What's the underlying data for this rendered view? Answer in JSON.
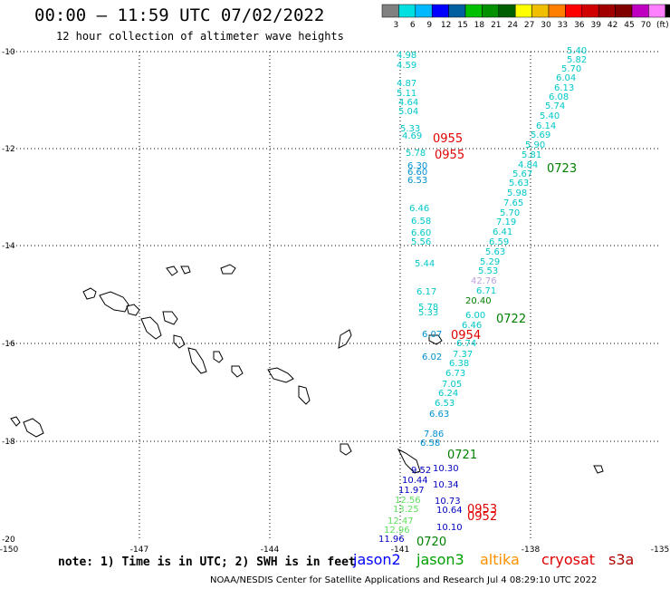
{
  "title": "00:00 — 11:59 UTC 07/02/2022",
  "subtitle": "12 hour collection of altimeter wave heights",
  "colorbar": {
    "colors": [
      "#808080",
      "#00e0e0",
      "#00b8ff",
      "#0000ff",
      "#0060a0",
      "#00c000",
      "#009000",
      "#006000",
      "#ffff00",
      "#f0c000",
      "#ff8000",
      "#ff0000",
      "#d00000",
      "#a00000",
      "#800000",
      "#c000c0",
      "#ff80ff",
      "#000000"
    ],
    "labels": [
      "3",
      "6",
      "9",
      "12",
      "15",
      "18",
      "21",
      "24",
      "27",
      "30",
      "33",
      "36",
      "39",
      "42",
      "45",
      "70",
      "(ft)"
    ]
  },
  "axes": {
    "lat_labels": [
      "-10",
      "-12",
      "-14",
      "-16",
      "-18",
      "-20"
    ],
    "lon_labels": [
      "-150",
      "-147",
      "-144",
      "-141",
      "-138",
      "-135"
    ]
  },
  "swh_labels": [
    {
      "t": "5.40",
      "c": "#00c8c8"
    },
    {
      "t": "5.82",
      "c": "#00c8c8"
    },
    {
      "t": "5.70",
      "c": "#00c8c8"
    },
    {
      "t": "6.04",
      "c": "#00c8c8"
    },
    {
      "t": "6.13",
      "c": "#00c8c8"
    },
    {
      "t": "6.08",
      "c": "#00c8c8"
    },
    {
      "t": "5.74",
      "c": "#00c8c8"
    },
    {
      "t": "5.40",
      "c": "#00c8c8"
    },
    {
      "t": "6.14",
      "c": "#00c8c8"
    },
    {
      "t": "5.69",
      "c": "#00c8c8"
    },
    {
      "t": "5.90",
      "c": "#00c8c8"
    },
    {
      "t": "5.81",
      "c": "#00c8c8"
    },
    {
      "t": "4.84",
      "c": "#00c8c8"
    },
    {
      "t": "5.67",
      "c": "#00c8c8"
    },
    {
      "t": "5.63",
      "c": "#00c8c8"
    },
    {
      "t": "5.98",
      "c": "#00c8c8"
    },
    {
      "t": "7.65",
      "c": "#00c8c8"
    },
    {
      "t": "5.70",
      "c": "#00c8c8"
    },
    {
      "t": "7.19",
      "c": "#00c8c8"
    },
    {
      "t": "6.41",
      "c": "#00c8c8"
    },
    {
      "t": "6.59",
      "c": "#00c8c8"
    },
    {
      "t": "5.63",
      "c": "#00c8c8"
    },
    {
      "t": "5.29",
      "c": "#00c8c8"
    },
    {
      "t": "5.53",
      "c": "#00c8c8"
    },
    {
      "t": "42.76",
      "c": "#c0a0e0"
    },
    {
      "t": "6.71",
      "c": "#00c8c8"
    },
    {
      "t": "20.40",
      "c": "#008000"
    },
    {
      "t": "6.00",
      "c": "#00c8c8"
    },
    {
      "t": "6.46",
      "c": "#00c8c8"
    },
    {
      "t": "6.74",
      "c": "#00c8c8"
    },
    {
      "t": "7.37",
      "c": "#00c8c8"
    },
    {
      "t": "6.38",
      "c": "#00c8c8"
    },
    {
      "t": "6.73",
      "c": "#00c8c8"
    },
    {
      "t": "7.05",
      "c": "#00c8c8"
    },
    {
      "t": "6.24",
      "c": "#00c8c8"
    },
    {
      "t": "6.53",
      "c": "#00c8c8"
    },
    {
      "t": "4.98",
      "c": "#00c8c8"
    },
    {
      "t": "4.59",
      "c": "#00c8c8"
    },
    {
      "t": "4.87",
      "c": "#00c8c8"
    },
    {
      "t": "5.11",
      "c": "#00c8c8"
    },
    {
      "t": "4.64",
      "c": "#00c8c8"
    },
    {
      "t": "5.04",
      "c": "#00c8c8"
    },
    {
      "t": "5.33",
      "c": "#00c8c8"
    },
    {
      "t": "4.69",
      "c": "#00c8c8"
    },
    {
      "t": "5.78",
      "c": "#00c8c8"
    },
    {
      "t": "6.30",
      "c": "#0090d0"
    },
    {
      "t": "6.60",
      "c": "#0090d0"
    },
    {
      "t": "6.53",
      "c": "#0090d0"
    },
    {
      "t": "6.46",
      "c": "#00c8c8"
    },
    {
      "t": "6.58",
      "c": "#00c8c8"
    },
    {
      "t": "6.60",
      "c": "#00c8c8"
    },
    {
      "t": "5.56",
      "c": "#00c8c8"
    },
    {
      "t": "5.44",
      "c": "#00c8c8"
    },
    {
      "t": "6.17",
      "c": "#00c8c8"
    },
    {
      "t": "5.78",
      "c": "#00c8c8"
    },
    {
      "t": "5.33",
      "c": "#00c8c8"
    },
    {
      "t": "6.07",
      "c": "#0090d0"
    },
    {
      "t": "6.02",
      "c": "#0090d0"
    },
    {
      "t": "6.63",
      "c": "#0090d0"
    },
    {
      "t": "7.86",
      "c": "#0090d0"
    },
    {
      "t": "6.58",
      "c": "#0090d0"
    },
    {
      "t": "9.52",
      "c": "#0000c0"
    },
    {
      "t": "10.30",
      "c": "#0000c0"
    },
    {
      "t": "10.44",
      "c": "#0000c0"
    },
    {
      "t": "11.97",
      "c": "#0000c0"
    },
    {
      "t": "10.34",
      "c": "#0000c0"
    },
    {
      "t": "12.56",
      "c": "#60e060"
    },
    {
      "t": "13.25",
      "c": "#60e060"
    },
    {
      "t": "12.47",
      "c": "#60e060"
    },
    {
      "t": "12.96",
      "c": "#60e060"
    },
    {
      "t": "11.96",
      "c": "#0000c0"
    },
    {
      "t": "10.73",
      "c": "#0000c0"
    },
    {
      "t": "10.64",
      "c": "#0000c0"
    },
    {
      "t": "10.10",
      "c": "#0000c0"
    }
  ],
  "time_labels": [
    {
      "t": "0955",
      "c": "#e00000"
    },
    {
      "t": "0955",
      "c": "#e00000"
    },
    {
      "t": "0723",
      "c": "#008000"
    },
    {
      "t": "0722",
      "c": "#008000"
    },
    {
      "t": "0954",
      "c": "#e00000"
    },
    {
      "t": "0721",
      "c": "#008000"
    },
    {
      "t": "0953",
      "c": "#e00000"
    },
    {
      "t": "0952",
      "c": "#e00000"
    },
    {
      "t": "0720",
      "c": "#008000"
    }
  ],
  "footer": {
    "note": "note: 1) Time is in UTC; 2) SWH is in feet",
    "satellites": [
      {
        "name": "jason2",
        "color": "#0000ff"
      },
      {
        "name": "jason3",
        "color": "#00a000"
      },
      {
        "name": "altika",
        "color": "#ff9000"
      },
      {
        "name": "cryosat",
        "color": "#e00000"
      },
      {
        "name": "s3a",
        "color": "#b00000"
      }
    ],
    "credit": "NOAA/NESDIS Center for Satellite Applications and Research    Jul  4 08:29:10 UTC 2022"
  }
}
